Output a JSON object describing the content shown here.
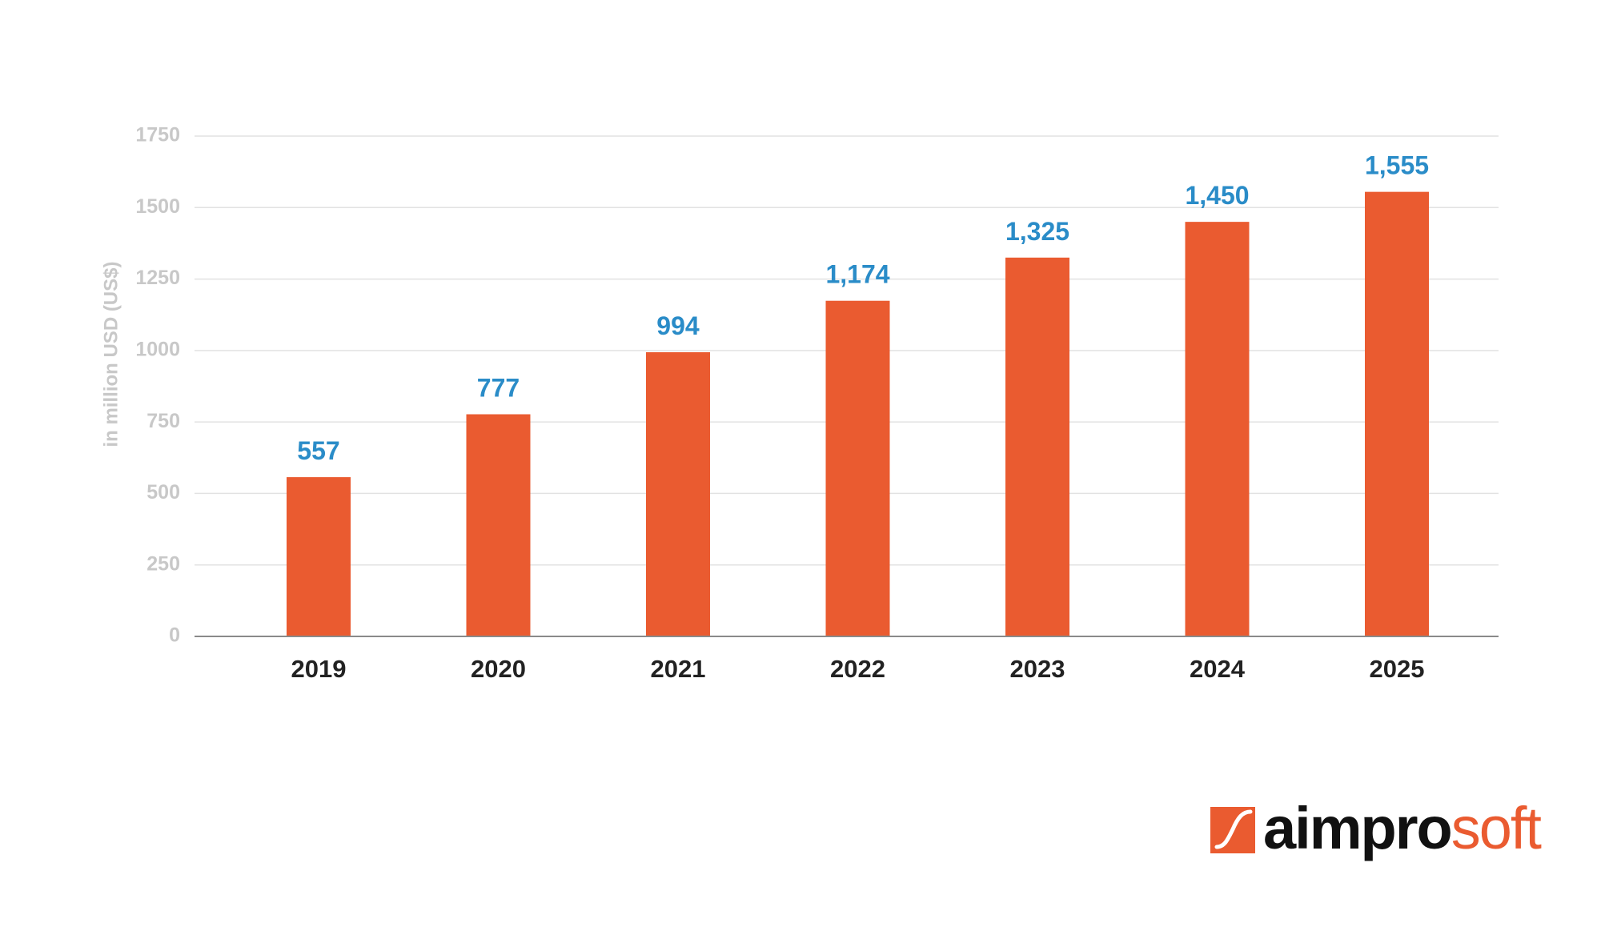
{
  "chart_data": {
    "type": "bar",
    "categories": [
      "2019",
      "2020",
      "2021",
      "2022",
      "2023",
      "2024",
      "2025"
    ],
    "values": [
      557,
      777,
      994,
      1174,
      1325,
      1450,
      1555
    ],
    "data_labels": [
      "557",
      "777",
      "994",
      "1,174",
      "1,325",
      "1,450",
      "1,555"
    ],
    "ylabel": "in million USD (US$)",
    "ylim": [
      0,
      1750
    ],
    "yticks": [
      0,
      250,
      500,
      750,
      1000,
      1250,
      1500,
      1750
    ],
    "grid": true,
    "legend": "none"
  },
  "colors": {
    "bar": "#ea5b30",
    "data_label": "#2a8cc8",
    "gridline": "#e2e2e2",
    "baseline": "#8a8a8a",
    "tick_label": "#c8c8c8",
    "category_label": "#222222"
  },
  "logo": {
    "name": "aimprosoft",
    "part_dark": "aimpro",
    "part_accent": "soft",
    "icon": "aimprosoft-logo-icon"
  }
}
